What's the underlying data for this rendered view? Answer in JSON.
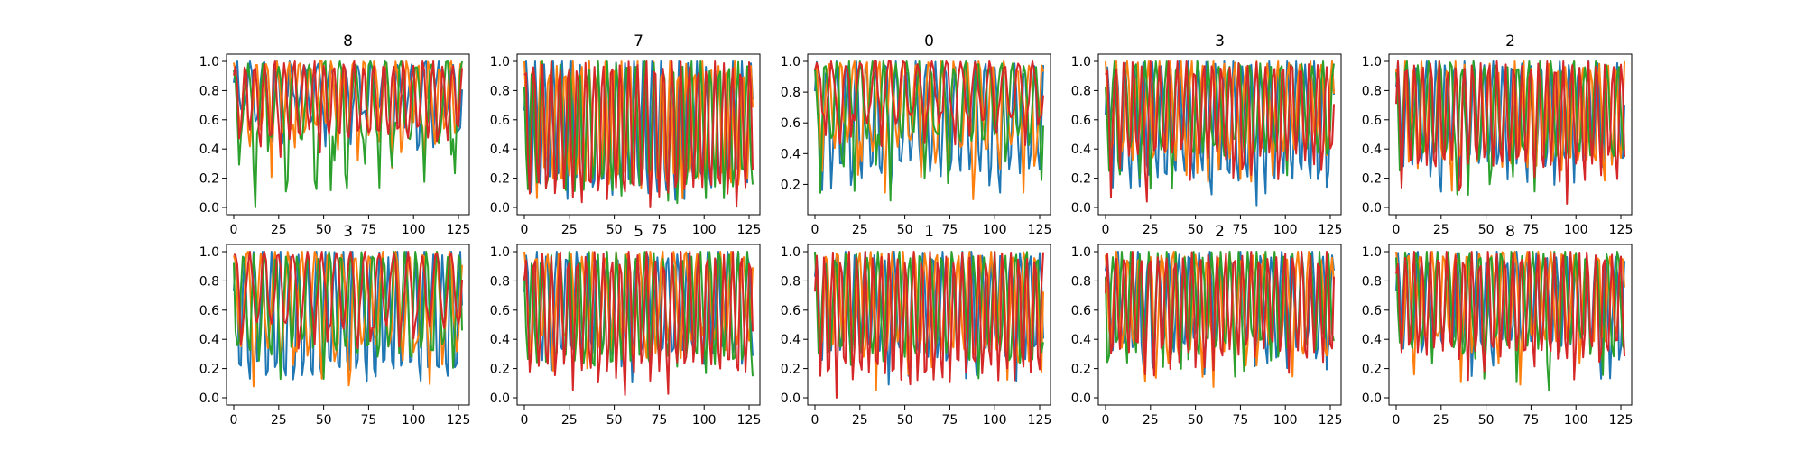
{
  "chart_data": [
    {
      "type": "line",
      "title": "8",
      "xlim": [
        0,
        127
      ],
      "ylim": [
        0.0,
        1.0
      ],
      "xticks": [
        0,
        25,
        50,
        75,
        100,
        125
      ],
      "yticks": [
        0.0,
        0.2,
        0.4,
        0.6,
        0.8,
        1.0
      ],
      "ytick_labels": [
        "0.0",
        "0.2",
        "0.4",
        "0.6",
        "0.8",
        "1.0"
      ],
      "x": "0..127 step 1",
      "series": [
        {
          "color": "#1f77b4",
          "period": 7.5,
          "phase": 0.3,
          "floor": 0.3,
          "ceil": 1.0,
          "mean_floor": 0.62
        },
        {
          "color": "#ff7f0e",
          "period": 6.0,
          "phase": 1.1,
          "floor": 0.05,
          "ceil": 1.0,
          "mean_floor": 0.55
        },
        {
          "color": "#2ca02c",
          "period": 8.5,
          "phase": 2.0,
          "floor": 0.0,
          "ceil": 1.0,
          "mean_floor": 0.45
        },
        {
          "color": "#d62728",
          "period": 5.5,
          "phase": 0.7,
          "floor": 0.3,
          "ceil": 1.0,
          "mean_floor": 0.5
        }
      ]
    },
    {
      "type": "line",
      "title": "7",
      "xlim": [
        0,
        127
      ],
      "ylim": [
        0.0,
        1.0
      ],
      "xticks": [
        0,
        25,
        50,
        75,
        100,
        125
      ],
      "yticks": [
        0.0,
        0.2,
        0.4,
        0.6,
        0.8,
        1.0
      ],
      "ytick_labels": [
        "0.0",
        "0.2",
        "0.4",
        "0.6",
        "0.8",
        "1.0"
      ],
      "x": "0..127 step 1",
      "series": [
        {
          "color": "#1f77b4",
          "period": 5.0,
          "phase": 0.2,
          "floor": 0.0,
          "ceil": 1.0,
          "mean_floor": 0.15
        },
        {
          "color": "#ff7f0e",
          "period": 4.5,
          "phase": 1.5,
          "floor": 0.0,
          "ceil": 1.0,
          "mean_floor": 0.2
        },
        {
          "color": "#2ca02c",
          "period": 5.2,
          "phase": 2.4,
          "floor": 0.0,
          "ceil": 1.0,
          "mean_floor": 0.15
        },
        {
          "color": "#d62728",
          "period": 4.8,
          "phase": 0.9,
          "floor": 0.0,
          "ceil": 1.0,
          "mean_floor": 0.1
        }
      ]
    },
    {
      "type": "line",
      "title": "0",
      "xlim": [
        0,
        127
      ],
      "ylim": [
        0.05,
        1.0
      ],
      "xticks": [
        0,
        25,
        50,
        75,
        100,
        125
      ],
      "yticks": [
        0.2,
        0.4,
        0.6,
        0.8,
        1.0
      ],
      "ytick_labels": [
        "0.2",
        "0.4",
        "0.6",
        "0.8",
        "1.0"
      ],
      "x": "0..127 step 1",
      "series": [
        {
          "color": "#1f77b4",
          "period": 5.5,
          "phase": 0.4,
          "floor": 0.1,
          "ceil": 1.0,
          "mean_floor": 0.3
        },
        {
          "color": "#ff7f0e",
          "period": 7.0,
          "phase": 1.2,
          "floor": 0.1,
          "ceil": 1.0,
          "mean_floor": 0.45
        },
        {
          "color": "#2ca02c",
          "period": 6.5,
          "phase": 2.2,
          "floor": 0.05,
          "ceil": 1.0,
          "mean_floor": 0.5
        },
        {
          "color": "#d62728",
          "period": 8.0,
          "phase": 0.6,
          "floor": 0.4,
          "ceil": 1.0,
          "mean_floor": 0.62
        }
      ]
    },
    {
      "type": "line",
      "title": "3",
      "xlim": [
        0,
        127
      ],
      "ylim": [
        0.0,
        1.0
      ],
      "xticks": [
        0,
        25,
        50,
        75,
        100,
        125
      ],
      "yticks": [
        0.0,
        0.2,
        0.4,
        0.6,
        0.8,
        1.0
      ],
      "ytick_labels": [
        "0.0",
        "0.2",
        "0.4",
        "0.6",
        "0.8",
        "1.0"
      ],
      "x": "0..127 step 1",
      "series": [
        {
          "color": "#1f77b4",
          "period": 5.0,
          "phase": 0.1,
          "floor": 0.0,
          "ceil": 1.0,
          "mean_floor": 0.2
        },
        {
          "color": "#ff7f0e",
          "period": 6.0,
          "phase": 1.7,
          "floor": 0.1,
          "ceil": 1.0,
          "mean_floor": 0.4
        },
        {
          "color": "#2ca02c",
          "period": 5.8,
          "phase": 2.6,
          "floor": 0.1,
          "ceil": 1.0,
          "mean_floor": 0.4
        },
        {
          "color": "#d62728",
          "period": 4.9,
          "phase": 0.8,
          "floor": 0.0,
          "ceil": 1.0,
          "mean_floor": 0.35
        }
      ]
    },
    {
      "type": "line",
      "title": "2",
      "xlim": [
        0,
        127
      ],
      "ylim": [
        0.0,
        1.0
      ],
      "xticks": [
        0,
        25,
        50,
        75,
        100,
        125
      ],
      "yticks": [
        0.0,
        0.2,
        0.4,
        0.6,
        0.8,
        1.0
      ],
      "ytick_labels": [
        "0.0",
        "0.2",
        "0.4",
        "0.6",
        "0.8",
        "1.0"
      ],
      "x": "0..127 step 1",
      "series": [
        {
          "color": "#1f77b4",
          "period": 5.3,
          "phase": 0.5,
          "floor": 0.05,
          "ceil": 1.0,
          "mean_floor": 0.3
        },
        {
          "color": "#ff7f0e",
          "period": 4.7,
          "phase": 1.3,
          "floor": 0.05,
          "ceil": 1.0,
          "mean_floor": 0.3
        },
        {
          "color": "#2ca02c",
          "period": 6.2,
          "phase": 2.1,
          "floor": 0.0,
          "ceil": 1.0,
          "mean_floor": 0.35
        },
        {
          "color": "#d62728",
          "period": 4.6,
          "phase": 0.2,
          "floor": 0.0,
          "ceil": 1.0,
          "mean_floor": 0.3
        }
      ]
    },
    {
      "type": "line",
      "title": "3",
      "xlim": [
        0,
        127
      ],
      "ylim": [
        0.0,
        1.0
      ],
      "xticks": [
        0,
        25,
        50,
        75,
        100,
        125
      ],
      "yticks": [
        0.0,
        0.2,
        0.4,
        0.6,
        0.8,
        1.0
      ],
      "ytick_labels": [
        "0.0",
        "0.2",
        "0.4",
        "0.6",
        "0.8",
        "1.0"
      ],
      "x": "0..127 step 1",
      "series": [
        {
          "color": "#1f77b4",
          "period": 5.0,
          "phase": 0.3,
          "floor": 0.0,
          "ceil": 1.0,
          "mean_floor": 0.15
        },
        {
          "color": "#ff7f0e",
          "period": 7.5,
          "phase": 1.4,
          "floor": 0.0,
          "ceil": 1.0,
          "mean_floor": 0.35
        },
        {
          "color": "#2ca02c",
          "period": 6.0,
          "phase": 2.3,
          "floor": 0.1,
          "ceil": 1.0,
          "mean_floor": 0.35
        },
        {
          "color": "#d62728",
          "period": 8.0,
          "phase": 0.9,
          "floor": 0.25,
          "ceil": 1.0,
          "mean_floor": 0.5
        }
      ]
    },
    {
      "type": "line",
      "title": "5",
      "xlim": [
        0,
        127
      ],
      "ylim": [
        0.0,
        1.0
      ],
      "xticks": [
        0,
        25,
        50,
        75,
        100,
        125
      ],
      "yticks": [
        0.0,
        0.2,
        0.4,
        0.6,
        0.8,
        1.0
      ],
      "ytick_labels": [
        "0.0",
        "0.2",
        "0.4",
        "0.6",
        "0.8",
        "1.0"
      ],
      "x": "0..127 step 1",
      "series": [
        {
          "color": "#1f77b4",
          "period": 5.6,
          "phase": 0.2,
          "floor": 0.05,
          "ceil": 1.0,
          "mean_floor": 0.3
        },
        {
          "color": "#ff7f0e",
          "period": 6.4,
          "phase": 1.6,
          "floor": 0.1,
          "ceil": 1.0,
          "mean_floor": 0.4
        },
        {
          "color": "#2ca02c",
          "period": 5.2,
          "phase": 2.5,
          "floor": 0.0,
          "ceil": 1.0,
          "mean_floor": 0.25
        },
        {
          "color": "#d62728",
          "period": 4.8,
          "phase": 0.7,
          "floor": 0.0,
          "ceil": 1.0,
          "mean_floor": 0.2
        }
      ]
    },
    {
      "type": "line",
      "title": "1",
      "xlim": [
        0,
        127
      ],
      "ylim": [
        0.0,
        1.0
      ],
      "xticks": [
        0,
        25,
        50,
        75,
        100,
        125
      ],
      "yticks": [
        0.0,
        0.2,
        0.4,
        0.6,
        0.8,
        1.0
      ],
      "ytick_labels": [
        "0.0",
        "0.2",
        "0.4",
        "0.6",
        "0.8",
        "1.0"
      ],
      "x": "0..127 step 1",
      "series": [
        {
          "color": "#1f77b4",
          "period": 5.4,
          "phase": 0.6,
          "floor": 0.0,
          "ceil": 1.0,
          "mean_floor": 0.3
        },
        {
          "color": "#ff7f0e",
          "period": 6.1,
          "phase": 1.2,
          "floor": 0.05,
          "ceil": 1.0,
          "mean_floor": 0.35
        },
        {
          "color": "#2ca02c",
          "period": 5.9,
          "phase": 2.0,
          "floor": 0.1,
          "ceil": 1.0,
          "mean_floor": 0.3
        },
        {
          "color": "#d62728",
          "period": 4.5,
          "phase": 0.4,
          "floor": 0.0,
          "ceil": 1.0,
          "mean_floor": 0.15
        }
      ]
    },
    {
      "type": "line",
      "title": "2",
      "xlim": [
        0,
        127
      ],
      "ylim": [
        0.0,
        1.0
      ],
      "xticks": [
        0,
        25,
        50,
        75,
        100,
        125
      ],
      "yticks": [
        0.0,
        0.2,
        0.4,
        0.6,
        0.8,
        1.0
      ],
      "ytick_labels": [
        "0.0",
        "0.2",
        "0.4",
        "0.6",
        "0.8",
        "1.0"
      ],
      "x": "0..127 step 1",
      "series": [
        {
          "color": "#1f77b4",
          "period": 5.7,
          "phase": 0.5,
          "floor": 0.1,
          "ceil": 1.0,
          "mean_floor": 0.35
        },
        {
          "color": "#ff7f0e",
          "period": 6.3,
          "phase": 1.8,
          "floor": 0.0,
          "ceil": 1.0,
          "mean_floor": 0.35
        },
        {
          "color": "#2ca02c",
          "period": 5.0,
          "phase": 2.7,
          "floor": 0.1,
          "ceil": 1.0,
          "mean_floor": 0.35
        },
        {
          "color": "#d62728",
          "period": 4.7,
          "phase": 0.3,
          "floor": 0.1,
          "ceil": 1.0,
          "mean_floor": 0.3
        }
      ]
    },
    {
      "type": "line",
      "title": "8",
      "xlim": [
        0,
        127
      ],
      "ylim": [
        0.0,
        1.0
      ],
      "xticks": [
        0,
        25,
        50,
        75,
        100,
        125
      ],
      "yticks": [
        0.0,
        0.2,
        0.4,
        0.6,
        0.8,
        1.0
      ],
      "ytick_labels": [
        "0.0",
        "0.2",
        "0.4",
        "0.6",
        "0.8",
        "1.0"
      ],
      "x": "0..127 step 1",
      "series": [
        {
          "color": "#1f77b4",
          "period": 5.5,
          "phase": 0.4,
          "floor": 0.1,
          "ceil": 1.0,
          "mean_floor": 0.35
        },
        {
          "color": "#ff7f0e",
          "period": 6.6,
          "phase": 1.5,
          "floor": 0.05,
          "ceil": 1.0,
          "mean_floor": 0.4
        },
        {
          "color": "#2ca02c",
          "period": 5.9,
          "phase": 2.2,
          "floor": 0.05,
          "ceil": 1.0,
          "mean_floor": 0.35
        },
        {
          "color": "#d62728",
          "period": 4.6,
          "phase": 0.8,
          "floor": 0.0,
          "ceil": 1.0,
          "mean_floor": 0.3
        }
      ]
    }
  ]
}
